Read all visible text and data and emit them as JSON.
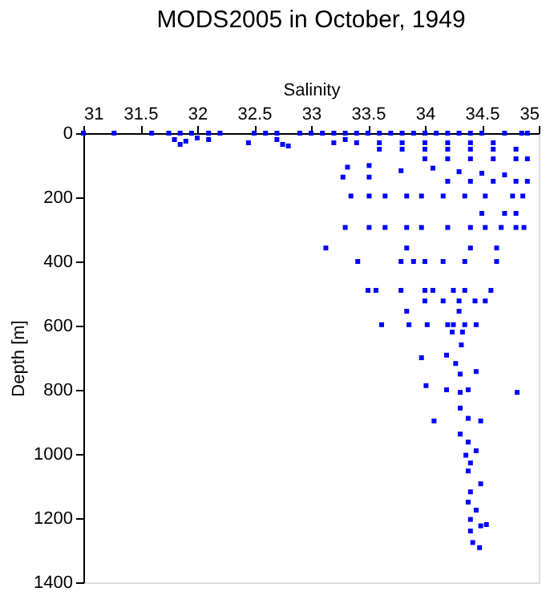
{
  "chart_data": {
    "type": "scatter",
    "title": "MODS2005 in October, 1949",
    "xlabel": "Salinity",
    "ylabel": "Depth [m]",
    "xlim": [
      31,
      35
    ],
    "xticks": [
      31,
      31.5,
      32,
      32.5,
      33,
      33.5,
      34,
      34.5,
      35
    ],
    "ylim": [
      1400,
      0
    ],
    "yticks": [
      0,
      200,
      400,
      600,
      800,
      1000,
      1200,
      1400
    ],
    "marker": "square",
    "grid": false,
    "series": [
      {
        "color": "#0000ff",
        "x": [
          31.0,
          31.27,
          31.6,
          31.75,
          31.85,
          31.95,
          32.1,
          32.2,
          32.5,
          32.6,
          32.7,
          32.9,
          33.0,
          33.1,
          33.2,
          33.3,
          33.4,
          33.5,
          33.6,
          33.7,
          33.8,
          33.9,
          34.0,
          34.1,
          34.2,
          34.3,
          34.4,
          34.5,
          34.7,
          34.85,
          34.9,
          31.8,
          31.85,
          31.9,
          32.0,
          32.1,
          32.45,
          32.7,
          32.75,
          32.8,
          33.2,
          33.3,
          33.4,
          33.6,
          33.8,
          34.0,
          34.2,
          34.4,
          34.6,
          33.6,
          33.8,
          34.0,
          34.2,
          34.4,
          34.6,
          34.8,
          34.0,
          34.2,
          34.4,
          34.6,
          34.8,
          33.32,
          33.51,
          33.28,
          33.51,
          33.79,
          34.07,
          34.3,
          34.5,
          34.7,
          34.9,
          34.2,
          34.4,
          34.6,
          34.8,
          34.9,
          33.35,
          33.51,
          33.65,
          33.84,
          33.97,
          34.16,
          34.35,
          34.53,
          34.77,
          34.86,
          34.5,
          34.7,
          34.8,
          33.3,
          33.51,
          33.65,
          33.84,
          33.97,
          34.2,
          34.4,
          34.53,
          34.67,
          34.8,
          34.87,
          33.13,
          33.84,
          34.4,
          34.63,
          33.41,
          33.79,
          33.9,
          34.0,
          34.16,
          34.35,
          34.63,
          33.5,
          33.57,
          33.79,
          34.0,
          34.07,
          34.25,
          34.35,
          34.58,
          34.0,
          34.16,
          34.3,
          34.44,
          34.53,
          33.84,
          34.3,
          33.62,
          33.86,
          34.02,
          34.2,
          34.25,
          34.35,
          34.45,
          34.24,
          34.33,
          34.32,
          33.97,
          34.19,
          34.27,
          34.31,
          34.45,
          34.01,
          34.19,
          34.31,
          34.38,
          34.81,
          34.31,
          34.08,
          34.38,
          34.49,
          34.31,
          34.38,
          34.36,
          34.45,
          34.4,
          34.38,
          34.49,
          34.4,
          34.38,
          34.45,
          34.4,
          34.49,
          34.54,
          34.4,
          34.42,
          34.48
        ],
        "values": [
          0,
          0,
          0,
          0,
          0,
          0,
          0,
          0,
          0,
          0,
          0,
          0,
          0,
          0,
          0,
          0,
          0,
          0,
          0,
          0,
          0,
          0,
          0,
          0,
          0,
          0,
          0,
          0,
          0,
          0,
          0,
          20,
          35,
          25,
          15,
          20,
          30,
          20,
          35,
          40,
          30,
          20,
          30,
          30,
          30,
          30,
          30,
          30,
          30,
          50,
          50,
          50,
          50,
          50,
          50,
          50,
          80,
          80,
          80,
          80,
          80,
          106,
          101,
          137,
          137,
          117,
          109,
          120,
          125,
          130,
          80,
          150,
          150,
          150,
          150,
          150,
          196,
          196,
          196,
          196,
          196,
          196,
          196,
          196,
          196,
          196,
          250,
          250,
          250,
          294,
          294,
          294,
          294,
          294,
          294,
          294,
          294,
          294,
          294,
          294,
          358,
          358,
          358,
          358,
          400,
          400,
          400,
          400,
          400,
          400,
          400,
          490,
          490,
          490,
          490,
          490,
          490,
          490,
          490,
          523,
          523,
          523,
          523,
          523,
          555,
          555,
          597,
          597,
          597,
          597,
          597,
          597,
          597,
          620,
          620,
          660,
          700,
          692,
          718,
          751,
          743,
          787,
          800,
          808,
          800,
          808,
          857,
          897,
          889,
          897,
          938,
          963,
          1004,
          990,
          1028,
          1053,
          1093,
          1118,
          1150,
          1175,
          1204,
          1224,
          1220,
          1240,
          1276,
          1292
        ]
      }
    ]
  }
}
